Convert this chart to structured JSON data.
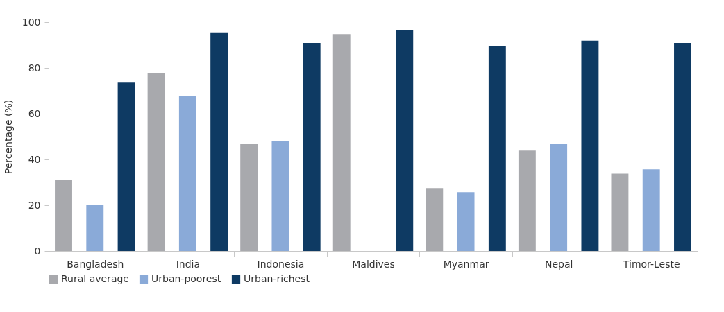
{
  "chart_data": {
    "type": "bar",
    "ylabel": "Percentage (%)",
    "categories": [
      "Bangladesh",
      "India",
      "Indonesia",
      "Maldives",
      "Myanmar",
      "Nepal",
      "Timor-Leste"
    ],
    "series": [
      {
        "name": "Rural average",
        "color": "#a8a9ad",
        "values": [
          31.1,
          77.9,
          47.0,
          94.8,
          27.5,
          43.9,
          33.8
        ]
      },
      {
        "name": "Urban-poorest",
        "color": "#8aaad8",
        "values": [
          20.0,
          67.9,
          48.2,
          null,
          25.7,
          47.0,
          35.7
        ]
      },
      {
        "name": "Urban-richest",
        "color": "#0e3a63",
        "values": [
          73.9,
          95.5,
          90.9,
          96.7,
          89.6,
          91.9,
          90.9
        ]
      }
    ],
    "ylim": [
      0,
      100
    ],
    "yticks": [
      0,
      20,
      40,
      60,
      80,
      100
    ],
    "grid": false,
    "legend": "bottom"
  }
}
